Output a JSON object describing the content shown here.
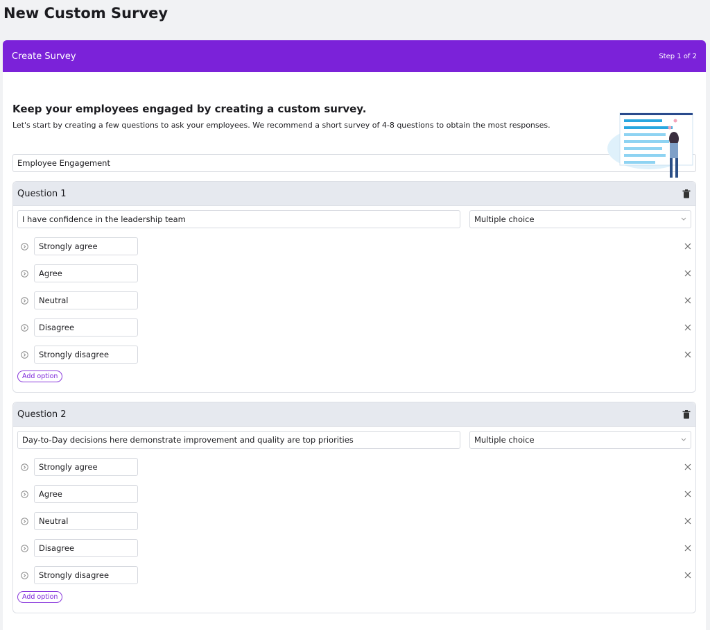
{
  "page_title": "New Custom Survey",
  "card": {
    "header": "Create Survey",
    "step": "Step 1 of 2",
    "heading": "Keep your employees engaged by creating a custom survey.",
    "description": "Let's start by creating a few questions to ask your employees. We recommend a short survey of 4-8 questions to obtain the most responses.",
    "survey_name": "Employee Engagement",
    "questions": [
      {
        "label": "Question 1",
        "text": "I have confidence in the leadership team",
        "type": "Multiple choice",
        "options": [
          "Strongly agree",
          "Agree",
          "Neutral",
          "Disagree",
          "Strongly disagree"
        ],
        "add_option": "Add option"
      },
      {
        "label": "Question 2",
        "text": "Day-to-Day decisions here demonstrate improvement and quality are top priorities",
        "type": "Multiple choice",
        "options": [
          "Strongly agree",
          "Agree",
          "Neutral",
          "Disagree",
          "Strongly disagree"
        ],
        "add_option": "Add option"
      }
    ]
  }
}
